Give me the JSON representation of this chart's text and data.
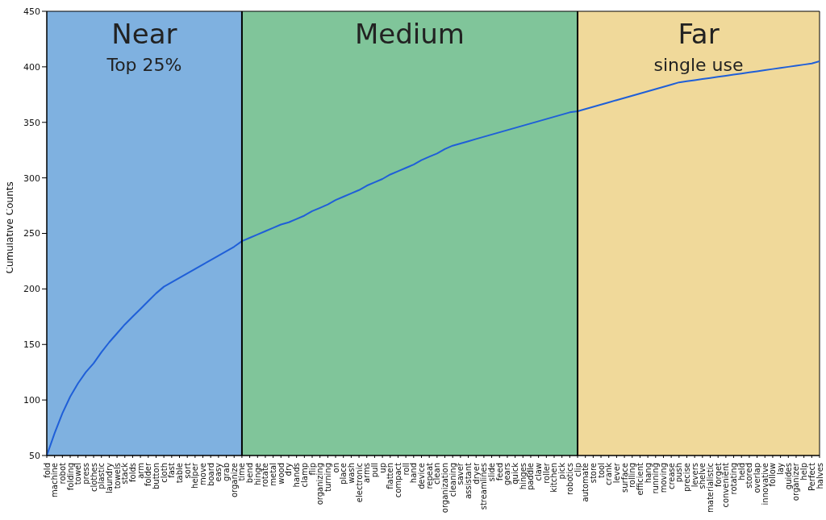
{
  "chart_data": {
    "type": "line",
    "ylabel": "Cumulative Counts",
    "categories": [
      "fold",
      "machine",
      "robot",
      "folding",
      "towel",
      "press",
      "clothes",
      "plastic",
      "laundry",
      "towels",
      "stack",
      "folds",
      "arm",
      "folder",
      "button",
      "cloth",
      "fast",
      "table",
      "sort",
      "helper",
      "move",
      "board",
      "easy",
      "grab",
      "organize",
      "time",
      "bend",
      "hinge",
      "rotate",
      "metal",
      "wood",
      "dry",
      "hands",
      "clamp",
      "flip",
      "organizing",
      "turning",
      "on",
      "place",
      "wash",
      "electronic",
      "arms",
      "pull",
      "up",
      "flatten",
      "compact",
      "roll",
      "hand",
      "device",
      "repeat",
      "clean",
      "organization",
      "cleaning",
      "saver",
      "assistant",
      "dryer",
      "streamlines",
      "slide",
      "feed",
      "gears",
      "quick",
      "hinges",
      "paddle",
      "claw",
      "roller",
      "kitchen",
      "pick",
      "robotics",
      "clip",
      "automate",
      "store",
      "tool",
      "crank",
      "lever",
      "surface",
      "rolling",
      "efficient",
      "hang",
      "running",
      "moving",
      "crease",
      "push",
      "precise",
      "levers",
      "shelve",
      "materialistic",
      "forget",
      "convenient",
      "rotating",
      "held",
      "stored",
      "overlap",
      "innovative",
      "follow",
      "lay",
      "guides",
      "organizer",
      "help",
      "Perfect",
      "halves"
    ],
    "series": [
      {
        "color": "#1f5fd8",
        "values": [
          50,
          70,
          88,
          103,
          115,
          125,
          133,
          143,
          152,
          160,
          168,
          175,
          182,
          189,
          196,
          202,
          206,
          210,
          214,
          218,
          222,
          226,
          230,
          234,
          238,
          243,
          246,
          249,
          252,
          255,
          258,
          260,
          263,
          266,
          270,
          273,
          276,
          280,
          283,
          286,
          289,
          293,
          296,
          299,
          303,
          306,
          309,
          312,
          316,
          319,
          322,
          326,
          329,
          331,
          333,
          335,
          337,
          339,
          341,
          343,
          345,
          347,
          349,
          351,
          353,
          355,
          357,
          359,
          360,
          362,
          364,
          366,
          368,
          370,
          372,
          374,
          376,
          378,
          380,
          382,
          384,
          386,
          387,
          388,
          389,
          390,
          391,
          392,
          393,
          394,
          395,
          396,
          397,
          398,
          399,
          400,
          401,
          402,
          403,
          405
        ]
      }
    ],
    "ylim": [
      50,
      450
    ],
    "yticks": [
      50,
      100,
      150,
      200,
      250,
      300,
      350,
      400,
      450
    ],
    "bands": [
      {
        "axis": "x",
        "from": "fold",
        "to": "time",
        "label": "Near\nTop 25%",
        "color": "#7fb1e0"
      },
      {
        "axis": "x",
        "from": "time",
        "to": "clip",
        "label": "Medium",
        "color": "#80c59a"
      },
      {
        "axis": "x",
        "from": "clip",
        "to": "halves",
        "label": "Far\nsingle use",
        "color": "#f0d99a"
      }
    ],
    "ref_lines": [
      {
        "axis": "x",
        "value": "time",
        "color": "#000000"
      },
      {
        "axis": "x",
        "value": "clip",
        "color": "#000000"
      }
    ]
  }
}
